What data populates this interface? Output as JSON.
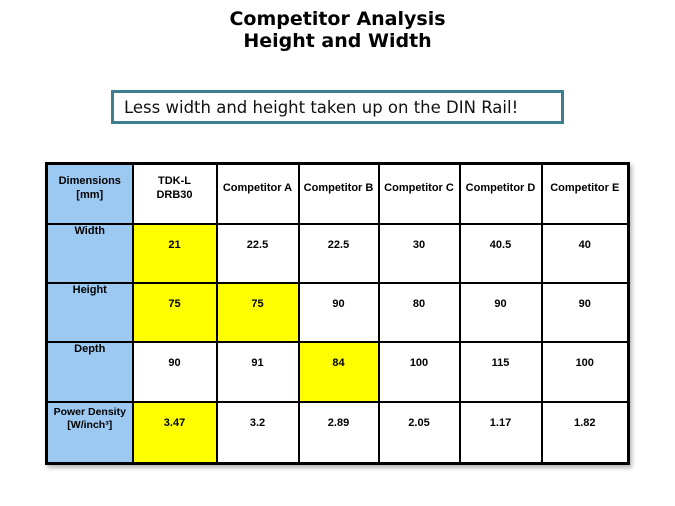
{
  "title": {
    "line1": "Competitor Analysis",
    "line2": "Height and Width"
  },
  "callout": {
    "text": "Less width and height taken up on the DIN Rail!"
  },
  "colors": {
    "callout_border": "#3D7E8F",
    "label_bg": "#9CC9F2",
    "label_text": "#17365D",
    "highlight_bg": "#FFFF00",
    "value_text": "#000000"
  },
  "table": {
    "header": [
      {
        "lines": [
          "Dimensions",
          "[mm]"
        ],
        "is_label": true
      },
      {
        "lines": [
          "TDK-L",
          "DRB30"
        ],
        "is_label": false
      },
      {
        "lines": [
          "Competitor A"
        ],
        "is_label": false
      },
      {
        "lines": [
          "Competitor B"
        ],
        "is_label": false
      },
      {
        "lines": [
          "Competitor C"
        ],
        "is_label": false
      },
      {
        "lines": [
          "Competitor D"
        ],
        "is_label": false
      },
      {
        "lines": [
          "Competitor E"
        ],
        "is_label": false
      }
    ],
    "rows": [
      {
        "label_lines": [
          "Width"
        ],
        "values": [
          "21",
          "22.5",
          "22.5",
          "30",
          "40.5",
          "40"
        ],
        "highlight": [
          0
        ]
      },
      {
        "label_lines": [
          "Height"
        ],
        "values": [
          "75",
          "75",
          "90",
          "80",
          "90",
          "90"
        ],
        "highlight": [
          0,
          1
        ]
      },
      {
        "label_lines": [
          "Depth"
        ],
        "values": [
          "90",
          "91",
          "84",
          "100",
          "115",
          "100"
        ],
        "highlight": [
          2
        ]
      },
      {
        "label_lines": [
          "Power Density",
          "[W/inch³]"
        ],
        "values": [
          "3.47",
          "3.2",
          "2.89",
          "2.05",
          "1.17",
          "1.82"
        ],
        "highlight": [
          0
        ]
      }
    ]
  },
  "chart_data": {
    "type": "table",
    "title": "Competitor Analysis Height and Width",
    "columns": [
      "Dimensions [mm]",
      "TDK-L DRB30",
      "Competitor A",
      "Competitor B",
      "Competitor C",
      "Competitor D",
      "Competitor E"
    ],
    "rows": [
      [
        "Width",
        21,
        22.5,
        22.5,
        30,
        40.5,
        40
      ],
      [
        "Height",
        75,
        75,
        90,
        80,
        90,
        90
      ],
      [
        "Depth",
        90,
        91,
        84,
        100,
        115,
        100
      ],
      [
        "Power Density [W/inch³]",
        3.47,
        3.2,
        2.89,
        2.05,
        1.17,
        1.82
      ]
    ],
    "highlighted_cells": [
      {
        "row": "Width",
        "column": "TDK-L DRB30",
        "value": 21
      },
      {
        "row": "Height",
        "column": "TDK-L DRB30",
        "value": 75
      },
      {
        "row": "Height",
        "column": "Competitor A",
        "value": 75
      },
      {
        "row": "Depth",
        "column": "Competitor B",
        "value": 84
      },
      {
        "row": "Power Density [W/inch³]",
        "column": "TDK-L DRB30",
        "value": 3.47
      }
    ]
  }
}
